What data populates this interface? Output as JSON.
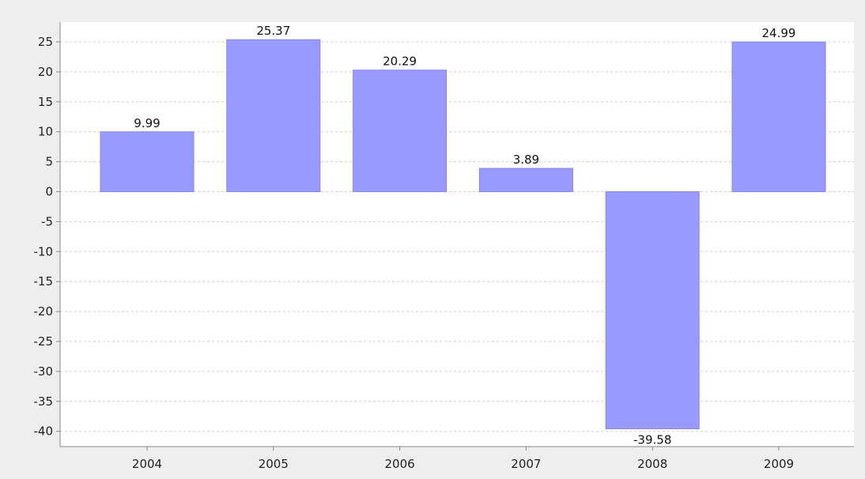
{
  "chart_data": {
    "type": "bar",
    "title": "",
    "xlabel": "",
    "ylabel": "",
    "categories": [
      "2004",
      "2005",
      "2006",
      "2007",
      "2008",
      "2009"
    ],
    "values": [
      9.99,
      25.37,
      20.29,
      3.89,
      -39.58,
      24.99
    ],
    "data_labels": [
      "9.99",
      "25.37",
      "20.29",
      "3.89",
      "-39.58",
      "24.99"
    ],
    "ylim": [
      -42,
      28
    ],
    "yticks": [
      25,
      20,
      15,
      10,
      5,
      0,
      -5,
      -10,
      -15,
      -20,
      -25,
      -30,
      -35,
      -40
    ],
    "ytick_labels": [
      "25",
      "20",
      "15",
      "10",
      "5",
      "0",
      "-5",
      "-10",
      "-15",
      "-20",
      "-25",
      "-30",
      "-35",
      "-40"
    ],
    "grid": true,
    "legend": "none",
    "colors": {
      "bar": "#9999ff",
      "bar_edge": "#8585e6",
      "grid": "#cfcfcf",
      "plot_background": "#ffffff",
      "page_background": "#eeeeee",
      "axis": "#888888"
    }
  }
}
